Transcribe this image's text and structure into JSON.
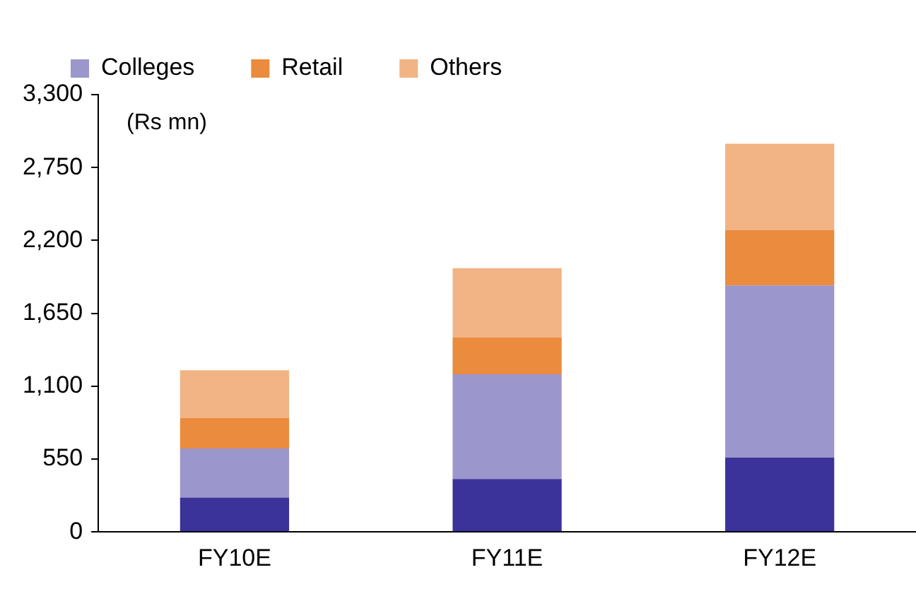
{
  "chart_data": {
    "type": "bar",
    "stacked": true,
    "categories": [
      "FY10E",
      "FY11E",
      "FY12E"
    ],
    "series": [
      {
        "color": "#3b3399",
        "values": [
          260,
          400,
          560
        ]
      },
      {
        "name": "Colleges",
        "color": "#9b96cc",
        "values": [
          370,
          790,
          1300
        ]
      },
      {
        "name": "Retail",
        "color": "#eb8b3e",
        "values": [
          230,
          280,
          420
        ]
      },
      {
        "name": "Others",
        "color": "#f2b385",
        "values": [
          360,
          520,
          650
        ]
      }
    ],
    "ylim": [
      0,
      3300
    ],
    "yticks": [
      {
        "value": 0,
        "label": "0"
      },
      {
        "value": 550,
        "label": "550"
      },
      {
        "value": 1100,
        "label": "1,100"
      },
      {
        "value": 1650,
        "label": "1,650"
      },
      {
        "value": 2200,
        "label": "2,200"
      },
      {
        "value": 2750,
        "label": "2,750"
      },
      {
        "value": 3300,
        "label": "3,300"
      }
    ],
    "grid": false,
    "legend": "top",
    "annotations": [
      "(Rs mn)"
    ]
  }
}
